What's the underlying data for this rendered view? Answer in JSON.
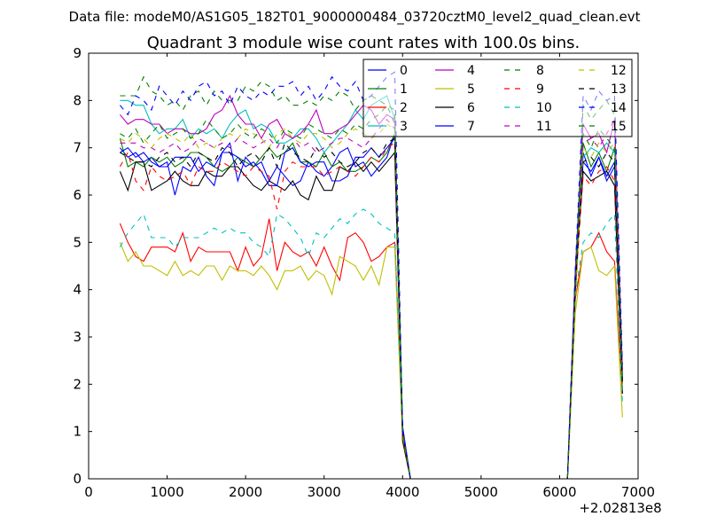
{
  "chart_data": {
    "type": "line",
    "suptitle": "Data file: modeM0/AS1G05_182T01_9000000484_03720cztM0_level2_quad_clean.evt",
    "title": "Quadrant 3 module wise count rates with 100.0s bins.",
    "xlabel": "",
    "ylabel": "",
    "x_offset_label": "+2.02813e8",
    "xlim": [
      0,
      7000
    ],
    "ylim": [
      0,
      9
    ],
    "xticks": [
      "0",
      "1000",
      "2000",
      "3000",
      "4000",
      "5000",
      "6000",
      "7000"
    ],
    "yticks": [
      "0",
      "1",
      "2",
      "3",
      "4",
      "5",
      "6",
      "7",
      "8",
      "9"
    ],
    "legend_placement": "top-right",
    "legend_columns": 4,
    "x": [
      400,
      500,
      600,
      700,
      800,
      900,
      1000,
      1100,
      1200,
      1300,
      1400,
      1500,
      1600,
      1700,
      1800,
      1900,
      2000,
      2100,
      2200,
      2300,
      2400,
      2500,
      2600,
      2700,
      2800,
      2900,
      3000,
      3100,
      3200,
      3300,
      3400,
      3500,
      3600,
      3700,
      3800,
      3900,
      4000,
      4100,
      6100,
      6200,
      6300,
      6400,
      6500,
      6600,
      6700,
      6800
    ],
    "series": [
      {
        "name": "0",
        "color": "#0000ff",
        "dashed": false,
        "values": [
          7.0,
          6.8,
          6.9,
          6.7,
          6.8,
          6.6,
          6.7,
          6.0,
          6.6,
          6.5,
          6.8,
          6.4,
          6.2,
          6.9,
          7.1,
          6.3,
          6.8,
          6.6,
          6.7,
          6.3,
          6.6,
          6.4,
          6.2,
          6.3,
          6.7,
          6.5,
          6.4,
          6.6,
          6.9,
          7.0,
          6.6,
          6.7,
          6.4,
          6.6,
          6.8,
          7.3,
          1.0,
          0,
          0,
          4.2,
          6.9,
          6.4,
          6.8,
          6.3,
          6.6,
          2.1
        ]
      },
      {
        "name": "1",
        "color": "#008000",
        "dashed": false,
        "values": [
          7.2,
          6.6,
          6.7,
          6.6,
          6.8,
          6.7,
          6.8,
          6.6,
          6.7,
          6.9,
          6.9,
          6.8,
          6.6,
          6.5,
          6.6,
          6.8,
          6.7,
          6.6,
          6.8,
          7.0,
          6.8,
          6.9,
          7.1,
          6.7,
          6.7,
          6.6,
          6.9,
          6.6,
          6.7,
          6.5,
          6.5,
          6.6,
          6.8,
          6.7,
          6.9,
          7.3,
          0.9,
          0,
          0,
          4.0,
          7.1,
          6.6,
          6.9,
          6.5,
          7.0,
          2.2
        ]
      },
      {
        "name": "2",
        "color": "#ff0000",
        "dashed": false,
        "values": [
          5.4,
          5.0,
          4.7,
          4.6,
          4.9,
          4.9,
          4.9,
          4.8,
          5.2,
          4.6,
          4.9,
          4.8,
          4.8,
          4.8,
          4.8,
          4.4,
          4.9,
          4.5,
          4.7,
          5.5,
          4.4,
          5.0,
          4.8,
          4.7,
          4.8,
          4.5,
          4.9,
          4.5,
          4.2,
          5.1,
          5.2,
          5.0,
          4.6,
          4.7,
          4.9,
          5.0,
          1.0,
          0,
          0,
          3.8,
          4.8,
          4.9,
          5.2,
          4.8,
          4.6,
          1.8
        ]
      },
      {
        "name": "3",
        "color": "#00bfbf",
        "dashed": false,
        "values": [
          8.0,
          8.0,
          7.9,
          7.9,
          7.5,
          7.3,
          7.4,
          7.4,
          7.6,
          7.2,
          7.4,
          7.3,
          7.4,
          7.2,
          7.5,
          7.7,
          7.8,
          7.4,
          7.5,
          7.4,
          7.1,
          7.1,
          7.2,
          7.4,
          7.4,
          7.2,
          6.9,
          7.1,
          7.3,
          7.5,
          7.8,
          7.6,
          7.9,
          8.0,
          8.1,
          7.6,
          1.1,
          0,
          0,
          4.3,
          6.8,
          7.0,
          6.9,
          7.1,
          6.9,
          2.0
        ]
      },
      {
        "name": "4",
        "color": "#bf00bf",
        "dashed": false,
        "values": [
          7.7,
          7.5,
          7.6,
          7.6,
          7.5,
          7.5,
          7.3,
          7.4,
          7.4,
          7.3,
          7.3,
          7.4,
          7.7,
          7.8,
          8.1,
          7.7,
          7.5,
          7.5,
          7.2,
          7.5,
          7.6,
          7.3,
          7.2,
          7.3,
          7.5,
          7.8,
          7.3,
          7.3,
          7.4,
          7.5,
          7.7,
          7.9,
          7.8,
          7.5,
          7.7,
          7.6,
          1.0,
          0,
          0,
          4.4,
          7.5,
          7.2,
          7.3,
          6.9,
          7.6,
          2.3
        ]
      },
      {
        "name": "5",
        "color": "#bfbf00",
        "dashed": false,
        "values": [
          5.0,
          4.6,
          4.8,
          4.5,
          4.5,
          4.4,
          4.3,
          4.6,
          4.3,
          4.4,
          4.3,
          4.5,
          4.5,
          4.2,
          4.5,
          4.4,
          4.4,
          4.3,
          4.5,
          4.3,
          4.0,
          4.4,
          4.4,
          4.5,
          4.2,
          4.4,
          4.3,
          3.9,
          4.7,
          4.6,
          4.5,
          4.2,
          4.5,
          4.1,
          4.9,
          4.9,
          0.8,
          0,
          0,
          3.5,
          4.8,
          4.9,
          4.4,
          4.3,
          4.5,
          1.3
        ]
      },
      {
        "name": "6",
        "color": "#000000",
        "dashed": false,
        "values": [
          6.5,
          6.1,
          6.7,
          6.7,
          6.1,
          6.2,
          6.3,
          6.5,
          6.3,
          6.2,
          6.2,
          6.5,
          6.4,
          6.4,
          6.6,
          6.6,
          6.4,
          6.2,
          6.1,
          6.3,
          6.2,
          6.1,
          6.3,
          6.0,
          5.9,
          6.4,
          6.1,
          6.1,
          6.6,
          6.5,
          6.7,
          6.5,
          6.7,
          6.5,
          6.7,
          6.9,
          0.8,
          0,
          0,
          4.1,
          6.5,
          6.3,
          6.4,
          6.5,
          6.2,
          1.8
        ]
      },
      {
        "name": "7",
        "color": "#0000ff",
        "dashed": false,
        "values": [
          6.9,
          7.0,
          6.8,
          6.9,
          6.7,
          6.6,
          6.6,
          6.8,
          6.8,
          6.8,
          6.5,
          6.7,
          6.6,
          6.9,
          6.9,
          6.8,
          6.6,
          6.7,
          6.5,
          6.2,
          6.2,
          6.9,
          7.0,
          6.7,
          6.6,
          6.7,
          6.7,
          6.3,
          6.3,
          6.4,
          6.8,
          6.8,
          7.0,
          6.8,
          7.0,
          7.2,
          1.1,
          0,
          0,
          4.3,
          6.7,
          6.5,
          6.8,
          6.4,
          6.7,
          2.0
        ]
      },
      {
        "name": "8",
        "color": "#008000",
        "dashed": true,
        "values": [
          8.1,
          8.1,
          8.1,
          8.5,
          8.2,
          8.1,
          7.9,
          8.0,
          7.8,
          8.1,
          8.2,
          7.9,
          8.2,
          8.0,
          8.0,
          8.0,
          8.3,
          8.2,
          8.4,
          8.3,
          8.0,
          8.1,
          7.9,
          7.9,
          8.0,
          7.9,
          8.1,
          8.0,
          8.2,
          8.1,
          7.8,
          8.0,
          8.1,
          8.0,
          7.9,
          7.8,
          1.0,
          0,
          0,
          4.2,
          7.9,
          7.6,
          7.8,
          8.0,
          7.7,
          2.1
        ]
      },
      {
        "name": "9",
        "color": "#ff0000",
        "dashed": true,
        "values": [
          6.6,
          6.9,
          6.3,
          6.1,
          6.6,
          6.4,
          6.3,
          6.4,
          6.5,
          6.2,
          6.6,
          6.5,
          6.5,
          6.7,
          6.6,
          6.5,
          6.4,
          6.6,
          6.5,
          6.4,
          5.7,
          6.5,
          6.7,
          6.6,
          6.6,
          6.6,
          6.4,
          6.5,
          6.6,
          6.5,
          6.4,
          6.6,
          6.8,
          6.7,
          7.0,
          7.1,
          0.9,
          0,
          0,
          4.0,
          6.4,
          6.2,
          6.5,
          6.6,
          6.3,
          2.0
        ]
      },
      {
        "name": "10",
        "color": "#00bfbf",
        "dashed": true,
        "values": [
          4.9,
          5.2,
          5.4,
          5.6,
          5.1,
          5.1,
          5.1,
          4.9,
          5.1,
          5.1,
          5.1,
          5.2,
          5.3,
          5.2,
          5.3,
          5.2,
          5.2,
          5.0,
          4.9,
          4.7,
          5.6,
          5.5,
          5.3,
          5.1,
          4.7,
          5.2,
          5.1,
          5.3,
          5.5,
          5.4,
          5.6,
          5.7,
          5.6,
          5.4,
          5.3,
          5.2,
          1.0,
          0,
          0,
          3.9,
          5.0,
          5.2,
          5.1,
          5.4,
          5.6,
          1.6
        ]
      },
      {
        "name": "11",
        "color": "#bf00bf",
        "dashed": true,
        "values": [
          7.1,
          7.1,
          7.1,
          7.0,
          7.0,
          6.9,
          7.0,
          7.1,
          6.9,
          7.0,
          7.2,
          7.1,
          7.0,
          7.1,
          7.0,
          7.2,
          7.1,
          7.0,
          7.1,
          7.2,
          7.0,
          7.3,
          7.2,
          7.0,
          7.1,
          6.9,
          7.0,
          7.1,
          7.2,
          7.2,
          7.1,
          7.0,
          7.2,
          7.4,
          7.6,
          7.4,
          1.0,
          0,
          0,
          4.1,
          7.1,
          7.2,
          7.0,
          7.3,
          7.6,
          2.2
        ]
      },
      {
        "name": "12",
        "color": "#bfbf00",
        "dashed": true,
        "values": [
          7.2,
          7.1,
          7.3,
          7.2,
          7.0,
          7.2,
          7.3,
          7.2,
          7.1,
          7.3,
          7.0,
          7.1,
          7.0,
          7.2,
          7.3,
          7.2,
          7.4,
          7.3,
          7.2,
          7.0,
          7.3,
          7.4,
          7.2,
          7.1,
          7.3,
          7.3,
          7.2,
          7.0,
          7.1,
          7.3,
          7.4,
          7.3,
          7.2,
          7.3,
          7.5,
          7.4,
          0.9,
          0,
          0,
          3.6,
          7.0,
          6.8,
          7.1,
          6.9,
          7.1,
          1.9
        ]
      },
      {
        "name": "13",
        "color": "#000000",
        "dashed": true,
        "values": [
          6.9,
          6.8,
          6.7,
          6.7,
          6.6,
          6.8,
          6.9,
          6.7,
          6.8,
          6.6,
          6.9,
          6.8,
          6.7,
          7.0,
          6.9,
          6.6,
          6.8,
          6.9,
          6.7,
          7.0,
          6.6,
          7.1,
          6.9,
          6.8,
          6.7,
          7.0,
          6.8,
          6.9,
          6.7,
          6.6,
          6.7,
          6.9,
          7.0,
          6.8,
          7.1,
          7.2,
          1.0,
          0,
          0,
          4.0,
          6.7,
          6.8,
          6.6,
          6.9,
          6.7,
          2.0
        ]
      },
      {
        "name": "14",
        "color": "#0000ff",
        "dashed": true,
        "values": [
          7.9,
          7.7,
          8.1,
          8.0,
          7.8,
          8.3,
          8.1,
          7.9,
          8.2,
          8.0,
          8.3,
          8.4,
          8.1,
          8.2,
          7.9,
          8.3,
          8.1,
          8.0,
          8.2,
          8.1,
          8.3,
          8.3,
          8.4,
          8.1,
          8.3,
          8.0,
          8.2,
          8.5,
          8.3,
          8.2,
          8.4,
          8.0,
          8.1,
          8.3,
          8.5,
          8.6,
          1.0,
          0,
          0,
          4.4,
          8.1,
          7.8,
          8.2,
          8.0,
          8.1,
          2.4
        ]
      },
      {
        "name": "15",
        "color": "#008000",
        "dashed": true,
        "values": [
          7.3,
          7.2,
          7.4,
          7.1,
          7.3,
          7.5,
          7.2,
          7.3,
          7.4,
          7.2,
          7.3,
          7.6,
          7.4,
          7.2,
          7.3,
          7.5,
          7.3,
          7.2,
          7.4,
          7.3,
          7.1,
          7.4,
          7.3,
          7.2,
          7.5,
          7.4,
          7.3,
          7.2,
          7.4,
          7.3,
          7.5,
          7.4,
          7.6,
          7.7,
          7.9,
          7.5,
          1.0,
          0,
          0,
          4.1,
          7.3,
          7.0,
          7.4,
          7.2,
          7.0,
          2.1
        ]
      }
    ]
  }
}
